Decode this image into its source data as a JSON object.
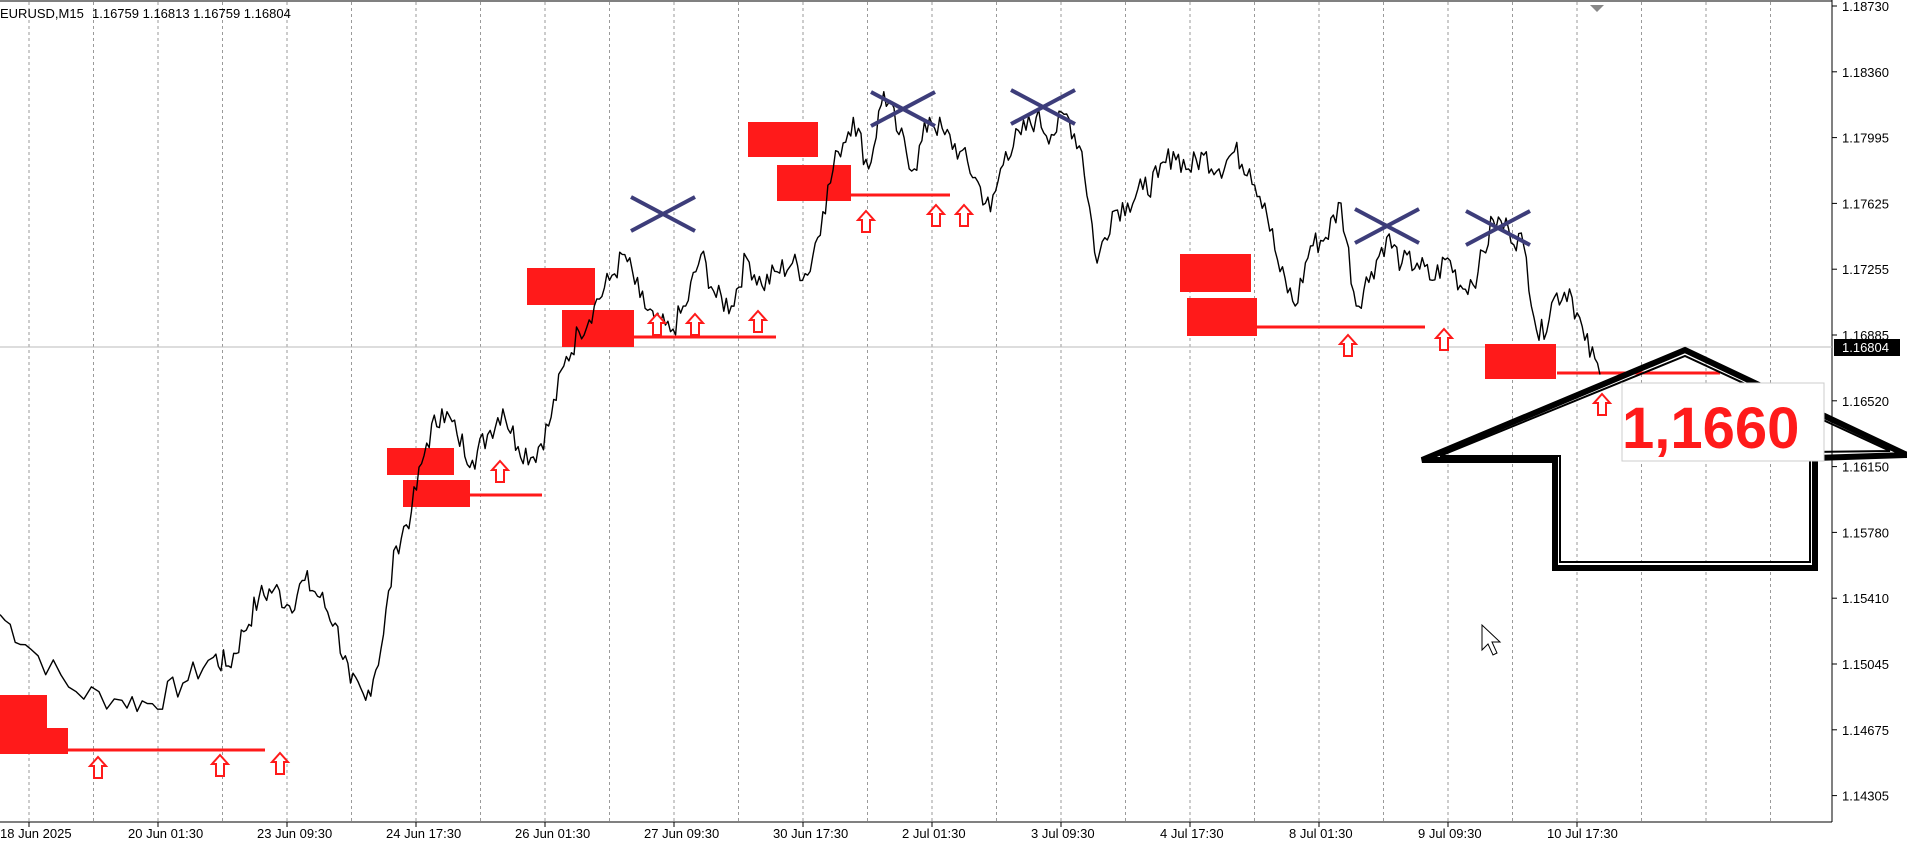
{
  "header": {
    "symbol_label": "EURUSD,M15",
    "ohlc": "1.16759 1.16813 1.16759 1.16804"
  },
  "price_axis": {
    "labels": [
      "1.18730",
      "1.18360",
      "1.17995",
      "1.17625",
      "1.17255",
      "1.16885",
      "1.16520",
      "1.16150",
      "1.15780",
      "1.15410",
      "1.15045",
      "1.14675",
      "1.14305"
    ],
    "current_price": "1.16804"
  },
  "time_axis": {
    "labels": [
      "18 Jun 2025",
      "20 Jun 01:30",
      "23 Jun 09:30",
      "24 Jun 17:30",
      "26 Jun 01:30",
      "27 Jun 09:30",
      "30 Jun 17:30",
      "2 Jul 01:30",
      "3 Jul 09:30",
      "4 Jul 17:30",
      "8 Jul 01:30",
      "9 Jul 09:30",
      "10 Jul 17:30"
    ]
  },
  "annotation": {
    "target_text": "1,1660"
  },
  "colors": {
    "zone": "#ff1a1a",
    "cross": "#3d3d7a",
    "price_line": "#000000",
    "grid": "#888888",
    "current_tag_bg": "#000000"
  },
  "chart_data": {
    "type": "line",
    "title": "",
    "series": [
      {
        "values": [
          [
            0,
            1.152
          ],
          [
            2,
            1.15
          ],
          [
            5,
            1.1475
          ],
          [
            8,
            1.147
          ],
          [
            10,
            1.1468
          ],
          [
            12,
            1.148
          ],
          [
            14,
            1.1495
          ],
          [
            15,
            1.149
          ],
          [
            16,
            1.151
          ],
          [
            17,
            1.153
          ],
          [
            18,
            1.1535
          ],
          [
            19,
            1.1525
          ],
          [
            20,
            1.154
          ],
          [
            21,
            1.153
          ],
          [
            22,
            1.1515
          ],
          [
            23,
            1.148
          ],
          [
            24,
            1.147
          ],
          [
            25,
            1.15
          ],
          [
            26,
            1.156
          ],
          [
            27,
            1.158
          ],
          [
            28,
            1.162
          ],
          [
            29,
            1.164
          ],
          [
            30,
            1.1625
          ],
          [
            31,
            1.161
          ],
          [
            32,
            1.1625
          ],
          [
            33,
            1.164
          ],
          [
            34,
            1.1618
          ],
          [
            35,
            1.1612
          ],
          [
            36,
            1.163
          ],
          [
            37,
            1.1665
          ],
          [
            38,
            1.1685
          ],
          [
            39,
            1.17
          ],
          [
            40,
            1.1715
          ],
          [
            41,
            1.173
          ],
          [
            42,
            1.1705
          ],
          [
            43,
            1.169
          ],
          [
            44,
            1.1685
          ],
          [
            45,
            1.17
          ],
          [
            46,
            1.173
          ],
          [
            47,
            1.1705
          ],
          [
            48,
            1.17
          ],
          [
            49,
            1.1728
          ],
          [
            50,
            1.1712
          ],
          [
            51,
            1.172
          ],
          [
            52,
            1.1725
          ],
          [
            53,
            1.1718
          ],
          [
            54,
            1.1755
          ],
          [
            55,
            1.179
          ],
          [
            56,
            1.181
          ],
          [
            57,
            1.178
          ],
          [
            58,
            1.1825
          ],
          [
            59,
            1.18
          ],
          [
            60,
            1.178
          ],
          [
            61,
            1.181
          ],
          [
            62,
            1.18
          ],
          [
            63,
            1.179
          ],
          [
            64,
            1.1775
          ],
          [
            65,
            1.1755
          ],
          [
            66,
            1.179
          ],
          [
            67,
            1.18
          ],
          [
            68,
            1.181
          ],
          [
            69,
            1.18
          ],
          [
            70,
            1.1812
          ],
          [
            71,
            1.179
          ],
          [
            72,
            1.1725
          ],
          [
            73,
            1.1755
          ],
          [
            74,
            1.176
          ],
          [
            75,
            1.1768
          ],
          [
            76,
            1.1775
          ],
          [
            77,
            1.179
          ],
          [
            78,
            1.178
          ],
          [
            79,
            1.1788
          ],
          [
            80,
            1.178
          ],
          [
            81,
            1.179
          ],
          [
            82,
            1.178
          ],
          [
            83,
            1.176
          ],
          [
            84,
            1.172
          ],
          [
            85,
            1.17
          ],
          [
            86,
            1.1735
          ],
          [
            87,
            1.174
          ],
          [
            88,
            1.176
          ],
          [
            89,
            1.17
          ],
          [
            90,
            1.172
          ],
          [
            91,
            1.174
          ],
          [
            92,
            1.1725
          ],
          [
            93,
            1.1725
          ],
          [
            94,
            1.1715
          ],
          [
            95,
            1.1728
          ],
          [
            96,
            1.171
          ],
          [
            97,
            1.172
          ],
          [
            98,
            1.175
          ],
          [
            99,
            1.1745
          ],
          [
            100,
            1.1735
          ],
          [
            101,
            1.168
          ],
          [
            102,
            1.1705
          ],
          [
            103,
            1.171
          ],
          [
            104,
            1.168
          ],
          [
            105,
            1.166
          ]
        ]
      }
    ],
    "xlim": [
      0,
      105
    ],
    "ylim": [
      1.142,
      1.1875
    ]
  }
}
